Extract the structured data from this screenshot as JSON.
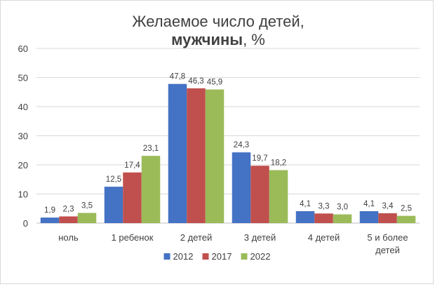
{
  "chart_data": {
    "type": "bar",
    "title_line1": "Желаемое число детей,",
    "title_line2_bold": "мужчины",
    "title_line2_rest": ", %",
    "categories": [
      "ноль",
      "1 ребенок",
      "2 детей",
      "3 детей",
      "4 детей",
      "5 и более детей"
    ],
    "category_lines": [
      [
        "ноль"
      ],
      [
        "1 ребенок"
      ],
      [
        "2 детей"
      ],
      [
        "3 детей"
      ],
      [
        "4 детей"
      ],
      [
        "5 и более",
        "детей"
      ]
    ],
    "series": [
      {
        "name": "2012",
        "color": "#4472c4",
        "values": [
          1.9,
          12.5,
          47.8,
          24.3,
          4.1,
          4.1
        ],
        "labels": [
          "1,9",
          "12,5",
          "47,8",
          "24,3",
          "4,1",
          "4,1"
        ]
      },
      {
        "name": "2017",
        "color": "#c0504d",
        "values": [
          2.3,
          17.4,
          46.3,
          19.7,
          3.3,
          3.4
        ],
        "labels": [
          "2,3",
          "17,4",
          "46,3",
          "19,7",
          "3,3",
          "3,4"
        ]
      },
      {
        "name": "2022",
        "color": "#9bbb59",
        "values": [
          3.5,
          23.1,
          45.9,
          18.2,
          3.0,
          2.5
        ],
        "labels": [
          "3,5",
          "23,1",
          "45,9",
          "18,2",
          "3,0",
          "2,5"
        ]
      }
    ],
    "ylim": [
      0,
      60
    ],
    "yticks": [
      0,
      10,
      20,
      30,
      40,
      50,
      60
    ],
    "grid": true,
    "legend_position": "bottom"
  }
}
